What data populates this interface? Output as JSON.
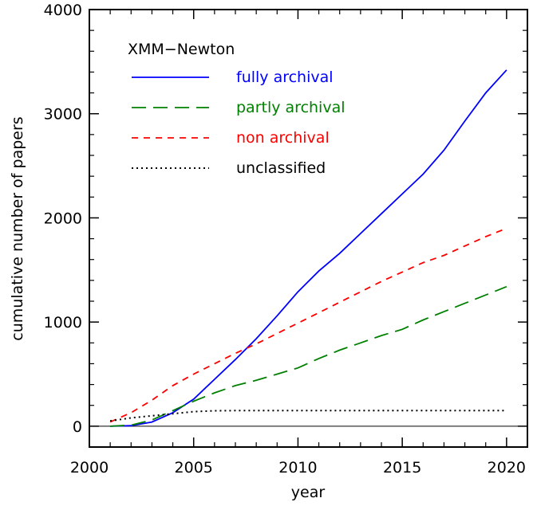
{
  "chart_data": {
    "type": "line",
    "title": "",
    "xlabel": "year",
    "ylabel": "cumulative number of papers",
    "xlim": [
      2000,
      2021
    ],
    "ylim": [
      -200,
      4000
    ],
    "xticks": [
      2000,
      2005,
      2010,
      2015,
      2020
    ],
    "yticks": [
      0,
      1000,
      2000,
      3000,
      4000
    ],
    "grid": false,
    "legend_title": "XMM−Newton",
    "legend_position": "top-left",
    "zero_line": true,
    "series": [
      {
        "name": "fully archival",
        "color": "#0000ff",
        "dash": "solid",
        "x": [
          2001,
          2002,
          2003,
          2004,
          2005,
          2006,
          2007,
          2008,
          2009,
          2010,
          2011,
          2012,
          2013,
          2014,
          2015,
          2016,
          2017,
          2018,
          2019,
          2020
        ],
        "y": [
          0,
          5,
          40,
          130,
          260,
          450,
          640,
          840,
          1060,
          1290,
          1490,
          1660,
          1850,
          2040,
          2230,
          2420,
          2650,
          2930,
          3200,
          3420
        ]
      },
      {
        "name": "partly archival",
        "color": "#008000",
        "dash": "long",
        "x": [
          2001,
          2002,
          2003,
          2004,
          2005,
          2006,
          2007,
          2008,
          2009,
          2010,
          2011,
          2012,
          2013,
          2014,
          2015,
          2016,
          2017,
          2018,
          2019,
          2020
        ],
        "y": [
          0,
          10,
          60,
          150,
          240,
          320,
          390,
          440,
          500,
          560,
          650,
          730,
          800,
          870,
          930,
          1020,
          1100,
          1180,
          1260,
          1340
        ]
      },
      {
        "name": "non archival",
        "color": "#ff0000",
        "dash": "short",
        "x": [
          2001,
          2002,
          2003,
          2004,
          2005,
          2006,
          2007,
          2008,
          2009,
          2010,
          2011,
          2012,
          2013,
          2014,
          2015,
          2016,
          2017,
          2018,
          2019,
          2020
        ],
        "y": [
          40,
          130,
          250,
          390,
          500,
          600,
          700,
          790,
          890,
          990,
          1090,
          1190,
          1290,
          1390,
          1480,
          1570,
          1640,
          1730,
          1820,
          1900
        ]
      },
      {
        "name": "unclassified",
        "color": "#000000",
        "dash": "dotted",
        "x": [
          2001,
          2002,
          2003,
          2004,
          2005,
          2006,
          2007,
          2008,
          2009,
          2010,
          2011,
          2012,
          2013,
          2014,
          2015,
          2016,
          2017,
          2018,
          2019,
          2020
        ],
        "y": [
          50,
          80,
          100,
          120,
          140,
          148,
          150,
          150,
          150,
          150,
          150,
          150,
          150,
          150,
          150,
          150,
          150,
          150,
          150,
          150
        ]
      }
    ]
  }
}
